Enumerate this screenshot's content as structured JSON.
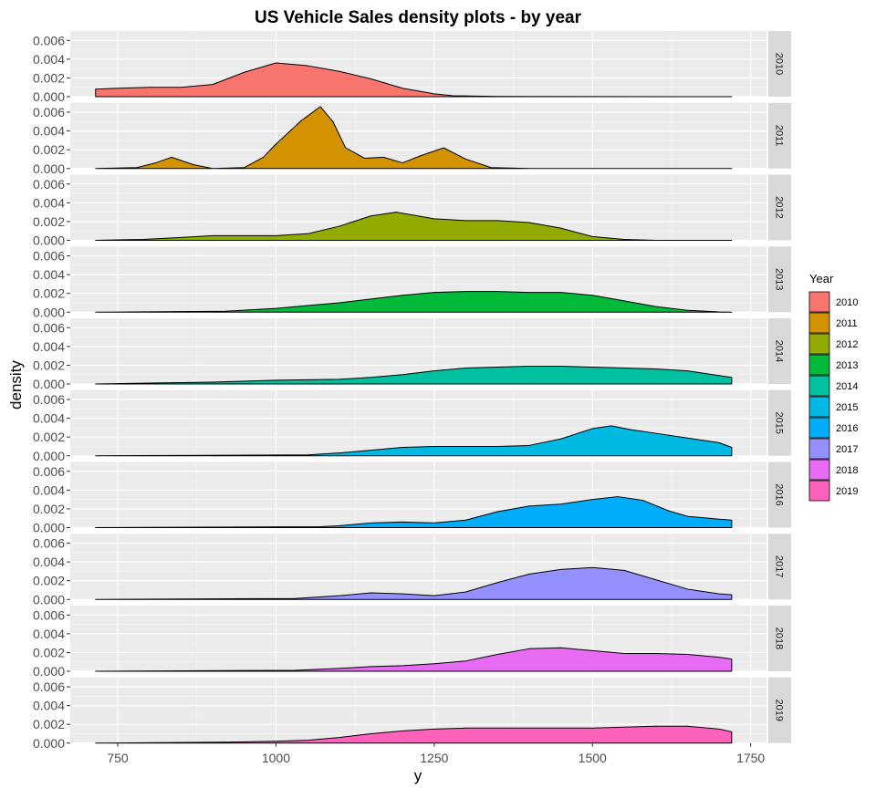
{
  "chart_data": {
    "type": "area",
    "title": "US Vehicle Sales density plots - by year",
    "xlabel": "y",
    "ylabel": "density",
    "xlim": [
      675,
      1775
    ],
    "ylim": [
      0,
      0.007
    ],
    "x_ticks": [
      750,
      1000,
      1250,
      1500,
      1750
    ],
    "x_tick_labels": [
      "750",
      "1000",
      "1250",
      "1500",
      "1750"
    ],
    "y_ticks": [
      0,
      0.002,
      0.004,
      0.006
    ],
    "y_tick_labels": [
      "0.000",
      "0.002",
      "0.004",
      "0.006"
    ],
    "grid": true,
    "facets": "rows",
    "legend": {
      "title": "Year",
      "position": "right"
    },
    "series": [
      {
        "name": "2010",
        "color": "#F8766D",
        "x": [
          715,
          750,
          800,
          850,
          900,
          950,
          1000,
          1050,
          1100,
          1150,
          1200,
          1250,
          1280,
          1350,
          1500,
          1650,
          1720
        ],
        "values": [
          0.0008,
          0.0009,
          0.001,
          0.001,
          0.0013,
          0.0026,
          0.0036,
          0.0033,
          0.0027,
          0.0019,
          0.0009,
          0.0003,
          0.0001,
          2e-05,
          1e-05,
          0.0,
          0.0
        ]
      },
      {
        "name": "2011",
        "color": "#D39200",
        "x": [
          715,
          780,
          810,
          835,
          870,
          900,
          950,
          980,
          1000,
          1040,
          1070,
          1090,
          1110,
          1140,
          1170,
          1200,
          1230,
          1265,
          1300,
          1340,
          1400,
          1720
        ],
        "values": [
          0.0,
          0.0001,
          0.0006,
          0.0012,
          0.0004,
          0.0,
          0.0001,
          0.0012,
          0.0026,
          0.0051,
          0.0066,
          0.005,
          0.0022,
          0.0011,
          0.0012,
          0.0006,
          0.0014,
          0.0022,
          0.001,
          0.0001,
          0.0,
          0.0
        ]
      },
      {
        "name": "2012",
        "color": "#93AA00",
        "x": [
          715,
          790,
          850,
          900,
          950,
          1000,
          1050,
          1100,
          1150,
          1190,
          1250,
          1300,
          1350,
          1400,
          1450,
          1500,
          1550,
          1600,
          1720
        ],
        "values": [
          0.0,
          0.0001,
          0.0003,
          0.0005,
          0.0005,
          0.0005,
          0.0007,
          0.0015,
          0.0026,
          0.003,
          0.0023,
          0.0021,
          0.0021,
          0.0019,
          0.0013,
          0.0004,
          0.0001,
          0.0,
          0.0
        ]
      },
      {
        "name": "2013",
        "color": "#00BA38",
        "x": [
          715,
          920,
          1000,
          1050,
          1100,
          1150,
          1200,
          1250,
          1300,
          1350,
          1400,
          1450,
          1500,
          1550,
          1600,
          1650,
          1700,
          1720
        ],
        "values": [
          0.0,
          0.0001,
          0.0004,
          0.0007,
          0.001,
          0.0014,
          0.0018,
          0.0021,
          0.0022,
          0.0022,
          0.0021,
          0.0021,
          0.0018,
          0.0012,
          0.0006,
          0.0002,
          3e-05,
          0.0
        ]
      },
      {
        "name": "2014",
        "color": "#00C19F",
        "x": [
          715,
          800,
          900,
          1000,
          1100,
          1150,
          1200,
          1250,
          1300,
          1350,
          1400,
          1450,
          1500,
          1550,
          1600,
          1650,
          1700,
          1720
        ],
        "values": [
          0.0,
          0.0001,
          0.0002,
          0.0004,
          0.0005,
          0.0007,
          0.001,
          0.0014,
          0.0017,
          0.0018,
          0.0019,
          0.0019,
          0.0018,
          0.0017,
          0.0016,
          0.0014,
          0.0009,
          0.0007
        ]
      },
      {
        "name": "2015",
        "color": "#00B9E3",
        "x": [
          715,
          1050,
          1100,
          1150,
          1200,
          1250,
          1300,
          1350,
          1400,
          1450,
          1500,
          1530,
          1560,
          1600,
          1650,
          1700,
          1720
        ],
        "values": [
          0.0,
          0.0001,
          0.0003,
          0.0006,
          0.0009,
          0.001,
          0.001,
          0.001,
          0.0011,
          0.0018,
          0.0029,
          0.0032,
          0.0028,
          0.0024,
          0.0019,
          0.0014,
          0.0009
        ]
      },
      {
        "name": "2016",
        "color": "#00ADFA",
        "x": [
          715,
          1070,
          1100,
          1150,
          1200,
          1250,
          1300,
          1350,
          1400,
          1450,
          1500,
          1540,
          1580,
          1620,
          1650,
          1700,
          1720
        ],
        "values": [
          0.0,
          0.0001,
          0.0002,
          0.0005,
          0.0006,
          0.0005,
          0.0008,
          0.0017,
          0.0023,
          0.0025,
          0.003,
          0.0033,
          0.0029,
          0.0018,
          0.0012,
          0.0009,
          0.0008
        ]
      },
      {
        "name": "2017",
        "color": "#9590FF",
        "x": [
          715,
          1030,
          1100,
          1150,
          1200,
          1250,
          1300,
          1350,
          1400,
          1450,
          1500,
          1550,
          1600,
          1650,
          1700,
          1720
        ],
        "values": [
          0.0,
          0.0001,
          0.0004,
          0.0007,
          0.0006,
          0.0004,
          0.0008,
          0.0018,
          0.0027,
          0.0032,
          0.0034,
          0.0031,
          0.0021,
          0.0011,
          0.0006,
          0.0005
        ]
      },
      {
        "name": "2018",
        "color": "#E76BF3",
        "x": [
          715,
          1030,
          1100,
          1150,
          1200,
          1250,
          1300,
          1350,
          1400,
          1450,
          1500,
          1550,
          1600,
          1650,
          1700,
          1720
        ],
        "values": [
          0.0,
          0.0001,
          0.0003,
          0.0005,
          0.0006,
          0.0008,
          0.0011,
          0.0018,
          0.0024,
          0.0025,
          0.0022,
          0.0019,
          0.0019,
          0.0018,
          0.0015,
          0.0013
        ]
      },
      {
        "name": "2019",
        "color": "#FF62BC",
        "x": [
          715,
          920,
          1000,
          1050,
          1100,
          1150,
          1200,
          1250,
          1300,
          1350,
          1400,
          1450,
          1500,
          1550,
          1600,
          1650,
          1700,
          1720
        ],
        "values": [
          0.0,
          0.0001,
          0.0002,
          0.0003,
          0.0006,
          0.001,
          0.0013,
          0.0015,
          0.0016,
          0.0016,
          0.0016,
          0.0016,
          0.0016,
          0.0017,
          0.0018,
          0.0018,
          0.0015,
          0.0012
        ]
      }
    ]
  }
}
